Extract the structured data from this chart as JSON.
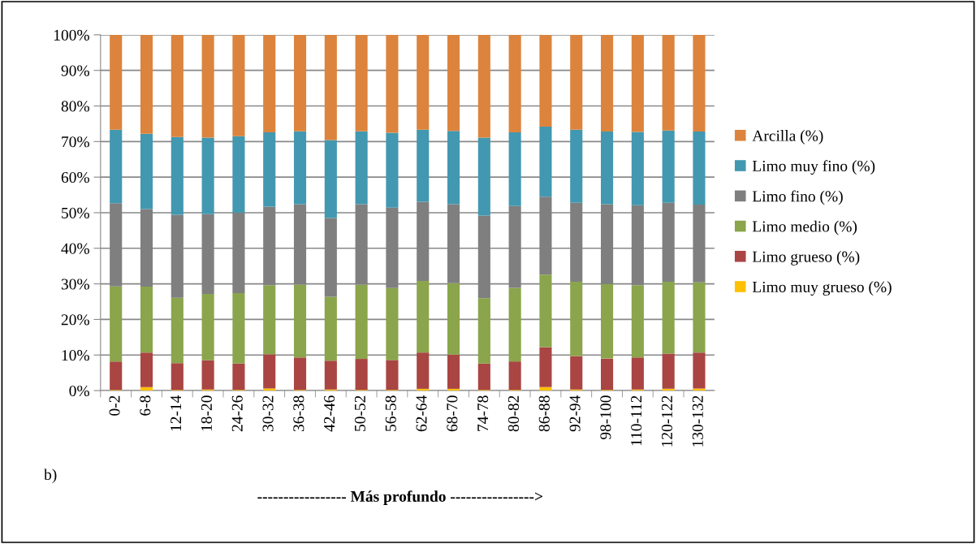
{
  "chart_data": {
    "type": "bar",
    "stacked": true,
    "categories": [
      "0-2",
      "6-8",
      "12-14",
      "18-20",
      "24-26",
      "30-32",
      "36-38",
      "42-46",
      "50-52",
      "56-58",
      "62-64",
      "68-70",
      "74-78",
      "80-82",
      "86-88",
      "92-94",
      "98-100",
      "110-112",
      "120-122",
      "130-132"
    ],
    "series": [
      {
        "name": "Limo muy grueso (%)",
        "color": "#ffc000",
        "values": [
          0.2,
          1.0,
          0.2,
          0.3,
          0.2,
          0.6,
          0.2,
          0.3,
          0.2,
          0.2,
          0.5,
          0.5,
          0.2,
          0.2,
          1.0,
          0.3,
          0.2,
          0.3,
          0.5,
          0.6
        ]
      },
      {
        "name": "Limo grueso (%)",
        "color": "#a94543",
        "values": [
          8.0,
          9.7,
          7.5,
          8.2,
          7.4,
          9.6,
          9.1,
          8.1,
          8.7,
          8.4,
          10.2,
          9.6,
          7.4,
          8.0,
          11.2,
          9.4,
          8.8,
          9.0,
          9.9,
          10.1
        ]
      },
      {
        "name": "Limo medio (%)",
        "color": "#8aa54b",
        "values": [
          21.1,
          18.5,
          18.4,
          18.7,
          19.8,
          19.4,
          20.5,
          18.0,
          20.9,
          20.2,
          20.1,
          20.1,
          18.4,
          20.7,
          20.4,
          20.9,
          20.9,
          20.3,
          20.2,
          19.7
        ]
      },
      {
        "name": "Limo fino (%)",
        "color": "#7f7f7f",
        "values": [
          23.4,
          21.8,
          23.3,
          22.4,
          22.6,
          22.1,
          22.6,
          22.1,
          22.6,
          22.6,
          22.3,
          22.2,
          23.2,
          23.0,
          21.9,
          22.2,
          22.5,
          22.5,
          22.2,
          21.9
        ]
      },
      {
        "name": "Limo muy fino (%)",
        "color": "#4298b0",
        "values": [
          20.6,
          21.2,
          21.9,
          21.5,
          21.5,
          20.9,
          20.5,
          21.9,
          20.5,
          21.1,
          20.2,
          20.6,
          21.9,
          20.7,
          19.7,
          20.5,
          20.4,
          20.6,
          20.3,
          20.5
        ]
      },
      {
        "name": "Arcilla (%)",
        "color": "#dc843d",
        "values": [
          26.7,
          27.8,
          28.7,
          28.9,
          28.5,
          27.4,
          27.1,
          29.6,
          27.1,
          27.5,
          26.7,
          27.0,
          28.9,
          27.4,
          25.8,
          26.7,
          27.2,
          27.3,
          26.9,
          27.2
        ]
      }
    ],
    "ylim": [
      0,
      100
    ],
    "yticks": [
      {
        "value": 0,
        "label": "0%"
      },
      {
        "value": 10,
        "label": "10%"
      },
      {
        "value": 20,
        "label": "20%"
      },
      {
        "value": 30,
        "label": "30%"
      },
      {
        "value": 40,
        "label": "40%"
      },
      {
        "value": 50,
        "label": "50%"
      },
      {
        "value": 60,
        "label": "60%"
      },
      {
        "value": 70,
        "label": "70%"
      },
      {
        "value": 80,
        "label": "80%"
      },
      {
        "value": 90,
        "label": "90%"
      },
      {
        "value": 100,
        "label": "100%"
      }
    ],
    "grid": "y",
    "legend": "right",
    "annotations": [
      "b)",
      "----------------- Más profundo ---------------->"
    ]
  }
}
